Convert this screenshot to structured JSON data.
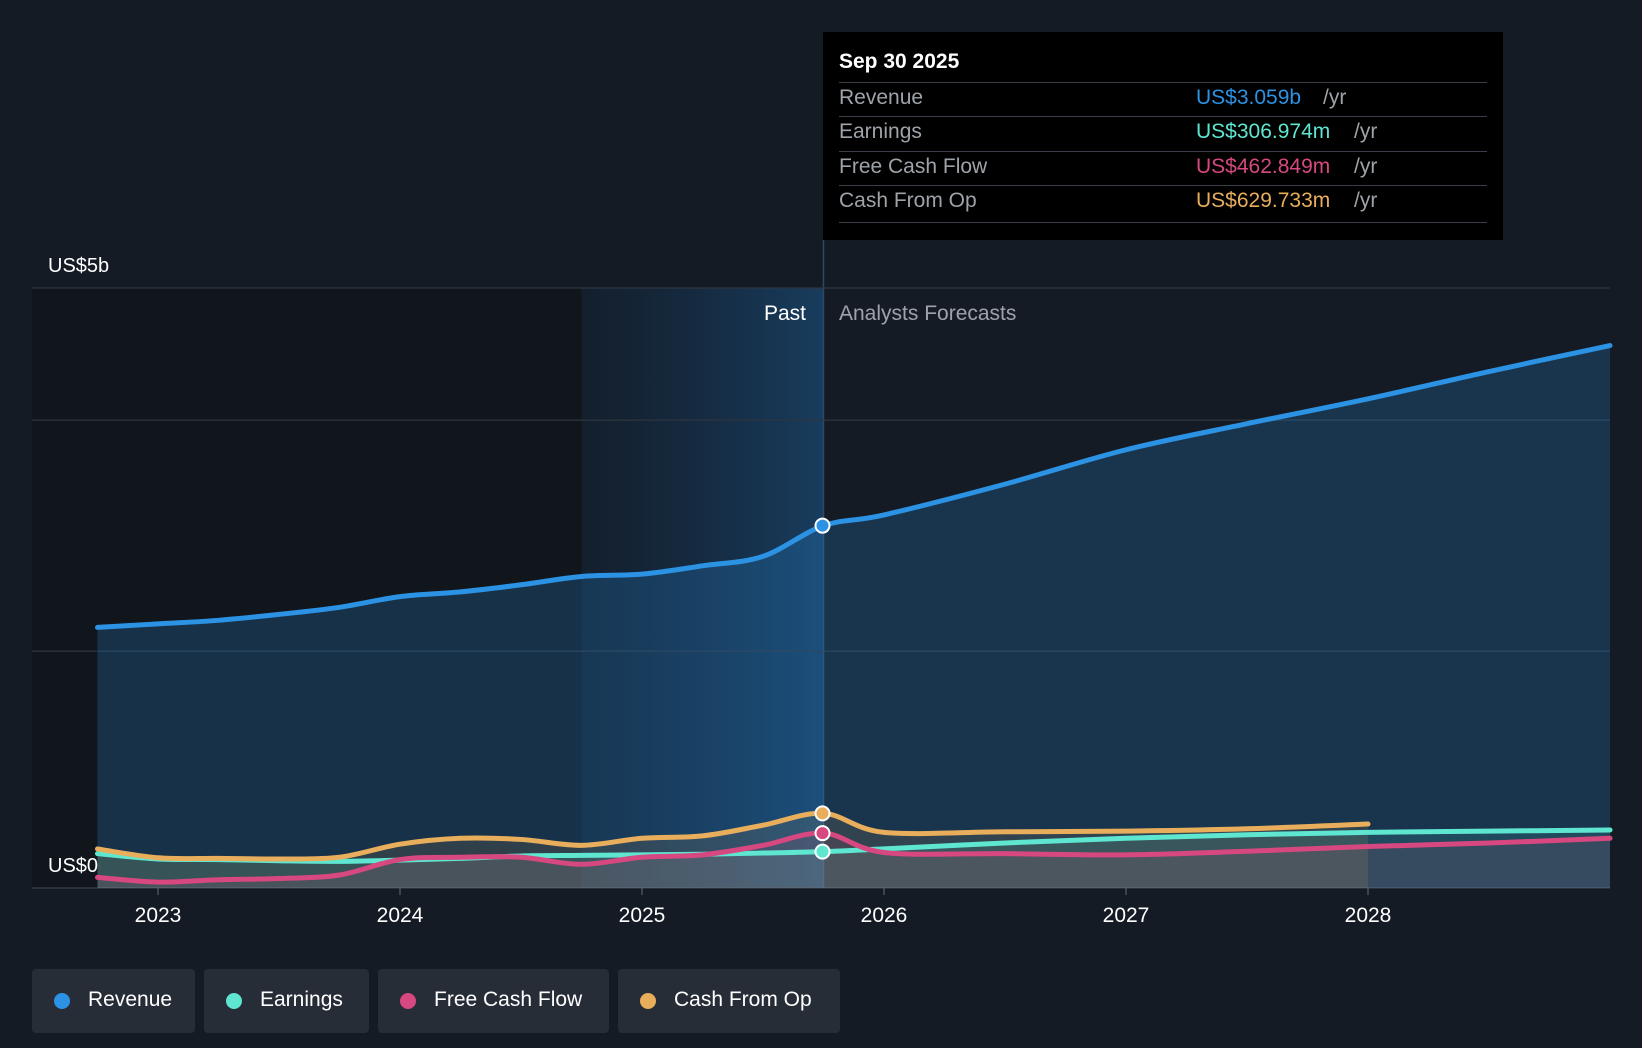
{
  "chart_data": {
    "type": "area",
    "y_axis": {
      "top_label": "US$5b",
      "bottom_label": "US$0",
      "ylim": [
        0,
        4.5
      ]
    },
    "x_ticks": [
      "2023",
      "2024",
      "2025",
      "2026",
      "2027",
      "2028"
    ],
    "past_label": "Past",
    "forecast_label": "Analysts Forecasts",
    "series": [
      {
        "name": "Revenue",
        "color": "#2b92e4",
        "x": [
          2022.75,
          2023.0,
          2023.25,
          2023.5,
          2023.75,
          2024.0,
          2024.25,
          2024.5,
          2024.75,
          2025.0,
          2025.25,
          2025.5,
          2025.75,
          2026.0,
          2026.5,
          2027.0,
          2027.5,
          2028.0,
          2028.5,
          2029.0
        ],
        "values": [
          2.2,
          2.23,
          2.26,
          2.31,
          2.37,
          2.46,
          2.5,
          2.56,
          2.63,
          2.65,
          2.72,
          2.8,
          3.059,
          3.15,
          3.41,
          3.7,
          3.92,
          4.13,
          4.36,
          4.58
        ]
      },
      {
        "name": "Earnings",
        "color": "#5ee6d0",
        "x": [
          2022.75,
          2023.0,
          2023.25,
          2023.5,
          2023.75,
          2024.0,
          2024.25,
          2024.5,
          2024.75,
          2025.0,
          2025.25,
          2025.5,
          2025.75,
          2026.0,
          2026.5,
          2027.0,
          2027.5,
          2028.0,
          2028.5,
          2029.0
        ],
        "values": [
          0.29,
          0.245,
          0.24,
          0.23,
          0.225,
          0.235,
          0.25,
          0.27,
          0.275,
          0.28,
          0.285,
          0.295,
          0.307,
          0.33,
          0.38,
          0.42,
          0.45,
          0.47,
          0.48,
          0.49
        ]
      },
      {
        "name": "Free Cash Flow",
        "color": "#d6487f",
        "x": [
          2022.75,
          2023.0,
          2023.25,
          2023.5,
          2023.75,
          2024.0,
          2024.25,
          2024.5,
          2024.75,
          2025.0,
          2025.25,
          2025.5,
          2025.75,
          2026.0,
          2026.5,
          2027.0,
          2027.5,
          2028.0,
          2028.5,
          2029.0
        ],
        "values": [
          0.09,
          0.05,
          0.07,
          0.08,
          0.11,
          0.24,
          0.26,
          0.26,
          0.2,
          0.26,
          0.28,
          0.36,
          0.463,
          0.3,
          0.29,
          0.28,
          0.31,
          0.35,
          0.38,
          0.42
        ]
      },
      {
        "name": "Cash From Op",
        "color": "#e8ae5c",
        "x": [
          2022.75,
          2023.0,
          2023.25,
          2023.5,
          2023.75,
          2024.0,
          2024.25,
          2024.5,
          2024.75,
          2025.0,
          2025.25,
          2025.5,
          2025.75,
          2026.0,
          2026.5,
          2027.0,
          2027.5,
          2028.0
        ],
        "values": [
          0.33,
          0.255,
          0.25,
          0.245,
          0.26,
          0.37,
          0.42,
          0.41,
          0.36,
          0.42,
          0.44,
          0.53,
          0.63,
          0.47,
          0.475,
          0.48,
          0.5,
          0.54
        ]
      }
    ]
  },
  "tooltip": {
    "date": "Sep 30 2025",
    "rows": [
      {
        "label": "Revenue",
        "value": "US$3.059b",
        "unit": "/yr",
        "color": "#2b92e4"
      },
      {
        "label": "Earnings",
        "value": "US$306.974m",
        "unit": "/yr",
        "color": "#5ee6d0"
      },
      {
        "label": "Free Cash Flow",
        "value": "US$462.849m",
        "unit": "/yr",
        "color": "#d6487f"
      },
      {
        "label": "Cash From Op",
        "value": "US$629.733m",
        "unit": "/yr",
        "color": "#e8ae5c"
      }
    ]
  },
  "legend": [
    {
      "label": "Revenue",
      "color": "#2b92e4"
    },
    {
      "label": "Earnings",
      "color": "#5ee6d0"
    },
    {
      "label": "Free Cash Flow",
      "color": "#d6487f"
    },
    {
      "label": "Cash From Op",
      "color": "#e8ae5c"
    }
  ]
}
